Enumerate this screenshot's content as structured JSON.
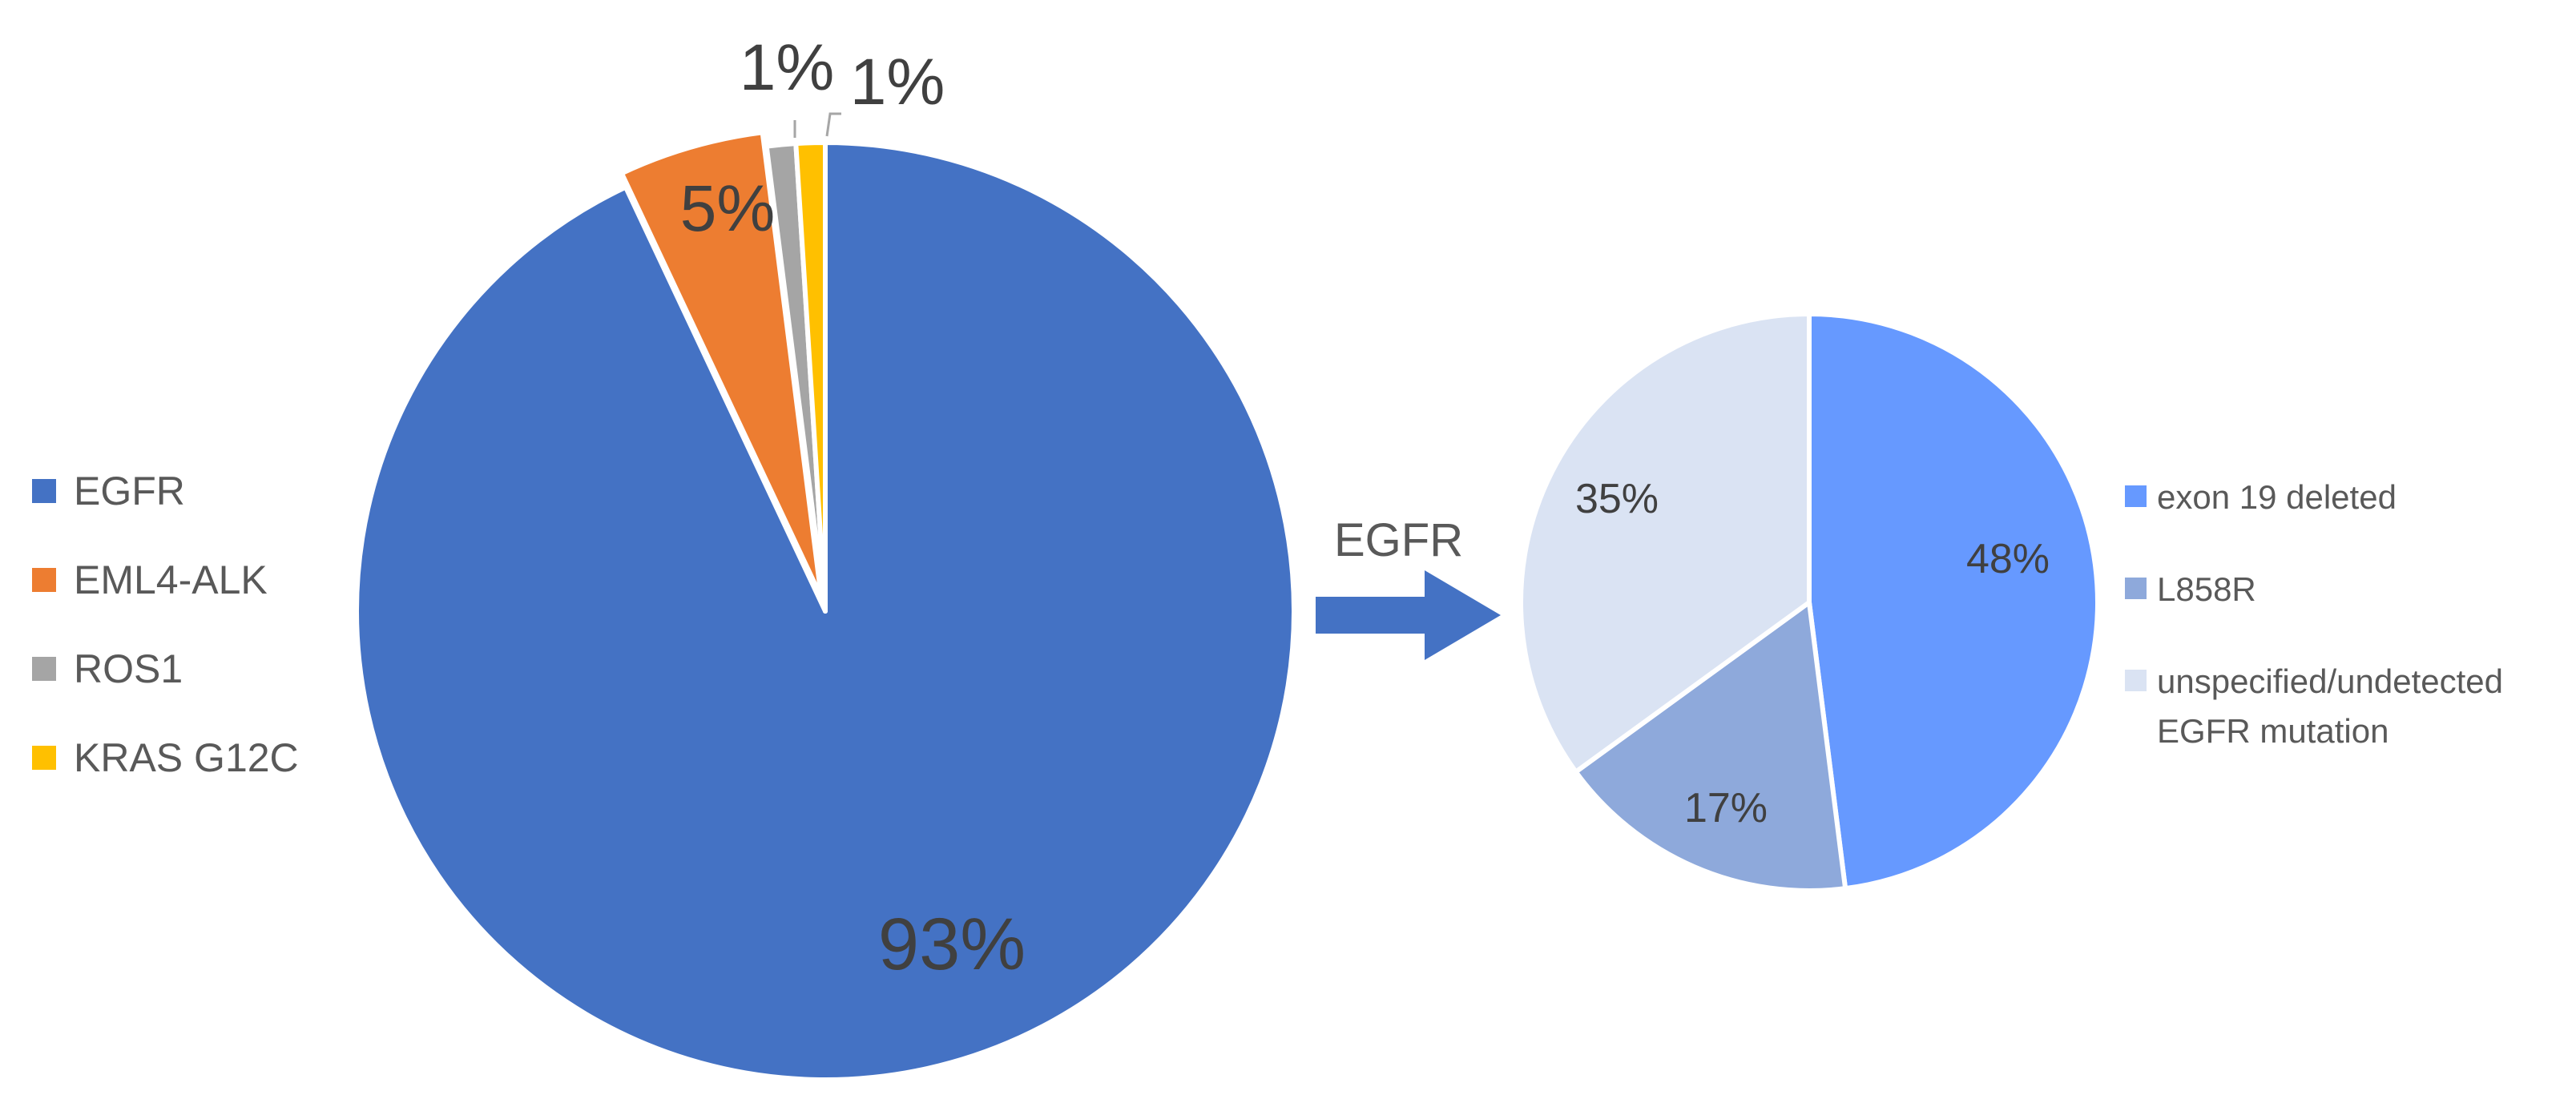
{
  "chart_data": [
    {
      "type": "pie",
      "categories": [
        "EGFR",
        "EML4-ALK",
        "ROS1",
        "KRAS G12C"
      ],
      "values": [
        93,
        5,
        1,
        1
      ],
      "data_labels": [
        "93%",
        "5%",
        "1%",
        "1%"
      ],
      "colors": [
        "#4472C4",
        "#ED7D31",
        "#A5A5A5",
        "#FFC000"
      ],
      "legend": "left",
      "exploded_slice": "EML4-ALK"
    },
    {
      "type": "pie",
      "categories": [
        "exon 19 deleted",
        "L858R",
        "unspecified/undetected EGFR mutation"
      ],
      "values": [
        48,
        17,
        35
      ],
      "data_labels": [
        "48%",
        "17%",
        "35%"
      ],
      "colors": [
        "#6699FF",
        "#8EA9DB",
        "#DAE3F3"
      ],
      "legend": "right"
    }
  ],
  "link": {
    "label": "EGFR",
    "arrow_color": "#4472C4"
  }
}
